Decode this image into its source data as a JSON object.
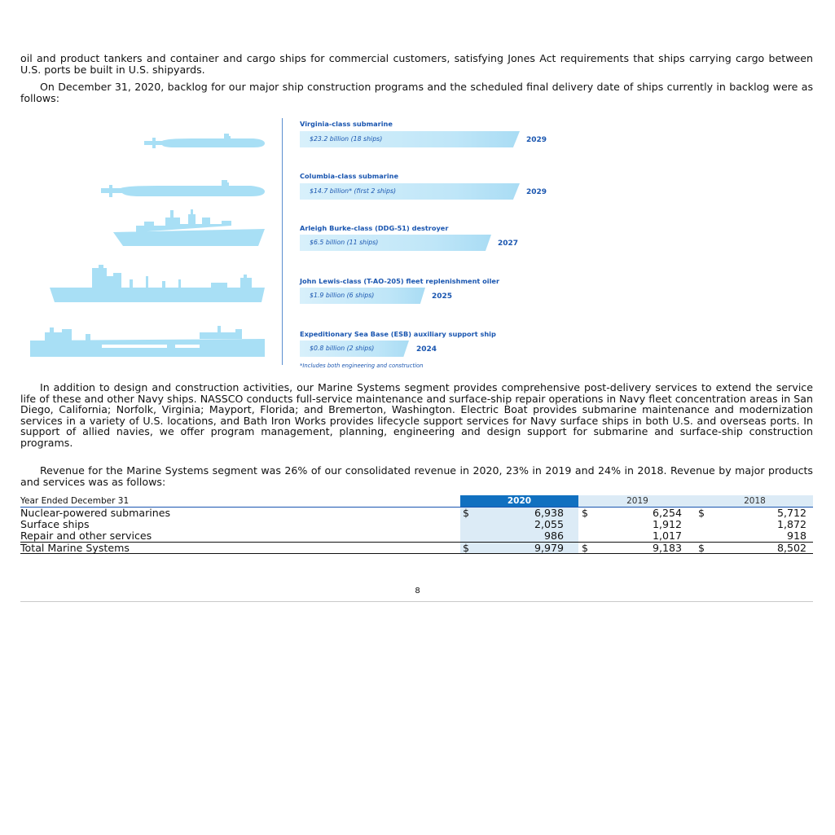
{
  "paragraphs": {
    "p1": "oil and product tankers and container and cargo ships for commercial customers, satisfying Jones Act requirements that ships carrying cargo between U.S. ports be built in U.S. shipyards.",
    "p2": "On December 31, 2020, backlog for our major ship construction programs and the scheduled final delivery date of ships currently in backlog were as follows:",
    "p3": "In addition to design and construction activities, our Marine Systems segment provides comprehensive post-delivery services to extend the service life of these and other Navy ships. NASSCO conducts full-service maintenance and surface-ship repair operations in Navy fleet concentration areas in San Diego, California; Norfolk, Virginia; Mayport, Florida; and Bremerton, Washington. Electric Boat provides submarine maintenance and modernization services in a variety of U.S. locations, and Bath Iron Works provides lifecycle support services for Navy surface ships in both U.S. and overseas ports. In support of allied navies, we offer program management, planning, engineering and design support for submarine and surface-ship construction programs.",
    "p4": "Revenue for the Marine Systems segment was 26% of our consolidated revenue in 2020, 23% in 2019 and 24% in 2018. Revenue by major products and services was as follows:"
  },
  "backlog": {
    "programs": [
      {
        "name": "Virginia-class submarine",
        "value_text": "$23.2 billion (18 ships)",
        "backlog_billion": 23.2,
        "year": "2029"
      },
      {
        "name": "Columbia-class submarine",
        "value_text": "$14.7 billion* (first 2 ships)",
        "backlog_billion": 14.7,
        "year": "2029"
      },
      {
        "name": "Arleigh Burke-class (DDG-51) destroyer",
        "value_text": "$6.5 billion (11 ships)",
        "backlog_billion": 6.5,
        "year": "2027"
      },
      {
        "name": "John Lewis-class (T-AO-205) fleet replenishment oiler",
        "value_text": "$1.9 billion (6 ships)",
        "backlog_billion": 1.9,
        "year": "2025"
      },
      {
        "name": "Expeditionary Sea Base (ESB) auxiliary support ship",
        "value_text": "$0.8 billion (2 ships)",
        "backlog_billion": 0.8,
        "year": "2024"
      }
    ],
    "footnote": "*Includes both engineering and construction",
    "colors": {
      "text": "#1a56b0",
      "ship": "#a8dff5"
    },
    "icons": [
      "submarine-icon",
      "submarine-icon",
      "destroyer-icon",
      "oiler-icon",
      "sea-base-icon"
    ]
  },
  "revenue_table": {
    "header_label": "Year Ended December 31",
    "years": [
      "2020",
      "2019",
      "2018"
    ],
    "currency": "$",
    "rows": [
      {
        "label": "Nuclear-powered submarines",
        "values": [
          "6,938",
          "6,254",
          "5,712"
        ],
        "dollar": true
      },
      {
        "label": "Surface ships",
        "values": [
          "2,055",
          "1,912",
          "1,872"
        ],
        "dollar": false
      },
      {
        "label": "Repair and other services",
        "values": [
          "986",
          "1,017",
          "918"
        ],
        "dollar": false
      },
      {
        "label": "Total Marine Systems",
        "values": [
          "9,979",
          "9,183",
          "8,502"
        ],
        "dollar": true
      }
    ],
    "colors": {
      "current_header": "#1070c0",
      "current_shade": "#dcebf6"
    }
  },
  "page_number": "8"
}
